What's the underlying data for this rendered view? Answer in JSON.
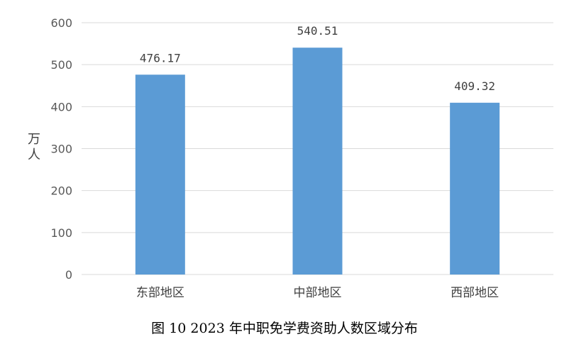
{
  "caption": "图 10    2023 年中职免学费资助人数区域分布",
  "chart_data": {
    "type": "bar",
    "title": "",
    "xlabel": "",
    "ylabel": "万人",
    "categories": [
      "东部地区",
      "中部地区",
      "西部地区"
    ],
    "values": [
      476.17,
      540.51,
      409.32
    ],
    "data_labels": [
      "476.17",
      "540.51",
      "409.32"
    ],
    "ylim": [
      0,
      600
    ],
    "yticks": [
      0,
      100,
      200,
      300,
      400,
      500,
      600
    ],
    "grid": true,
    "legend": "none",
    "colors": {
      "bar": "#5B9BD5",
      "grid": "#D9D9D9"
    }
  }
}
